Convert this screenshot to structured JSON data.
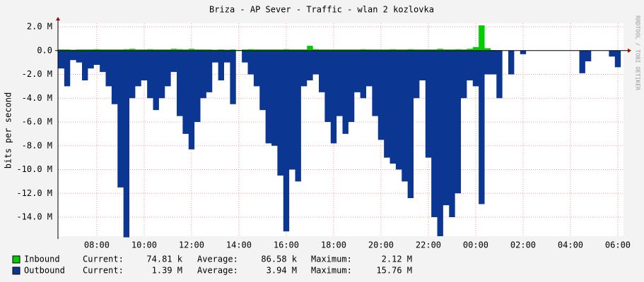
{
  "chart_data": {
    "type": "area",
    "title": "Briza - AP Sever - Traffic - wlan 2 kozlovka",
    "ylabel": "bits per second",
    "side_note": "RRDTOOL / TOBI OETIKER",
    "xlim": [
      6.36,
      30.24
    ],
    "xticks": [
      {
        "value": 8,
        "label": "08:00"
      },
      {
        "value": 10,
        "label": "10:00"
      },
      {
        "value": 12,
        "label": "12:00"
      },
      {
        "value": 14,
        "label": "14:00"
      },
      {
        "value": 16,
        "label": "16:00"
      },
      {
        "value": 18,
        "label": "18:00"
      },
      {
        "value": 20,
        "label": "20:00"
      },
      {
        "value": 22,
        "label": "22:00"
      },
      {
        "value": 24,
        "label": "00:00"
      },
      {
        "value": 26,
        "label": "02:00"
      },
      {
        "value": 28,
        "label": "04:00"
      },
      {
        "value": 30,
        "label": "06:00"
      }
    ],
    "ylim": [
      -15.6,
      2.3
    ],
    "yticks": [
      {
        "value": 2,
        "label": "2.0 M"
      },
      {
        "value": 0,
        "label": "0.0"
      },
      {
        "value": -2,
        "label": "-2.0 M"
      },
      {
        "value": -4,
        "label": "-4.0 M"
      },
      {
        "value": -6,
        "label": "-6.0 M"
      },
      {
        "value": -8,
        "label": "-8.0 M"
      },
      {
        "value": -10,
        "label": "-10.0 M"
      },
      {
        "value": -12,
        "label": "-12.0 M"
      },
      {
        "value": -14,
        "label": "-14.0 M"
      }
    ],
    "grid": true,
    "x": [
      6.5,
      6.75,
      7,
      7.25,
      7.5,
      7.75,
      8,
      8.25,
      8.5,
      8.75,
      9,
      9.25,
      9.5,
      9.75,
      10,
      10.25,
      10.5,
      10.75,
      11,
      11.25,
      11.5,
      11.75,
      12,
      12.25,
      12.5,
      12.75,
      13,
      13.25,
      13.5,
      13.75,
      14,
      14.25,
      14.5,
      14.75,
      15,
      15.25,
      15.5,
      15.75,
      16,
      16.25,
      16.5,
      16.75,
      17,
      17.25,
      17.5,
      17.75,
      18,
      18.25,
      18.5,
      18.75,
      19,
      19.25,
      19.5,
      19.75,
      20,
      20.25,
      20.5,
      20.75,
      21,
      21.25,
      21.5,
      21.75,
      22,
      22.25,
      22.5,
      22.75,
      23,
      23.25,
      23.5,
      23.75,
      24,
      24.25,
      24.5,
      24.75,
      25,
      25.25,
      25.5,
      25.75,
      26,
      26.25,
      26.5,
      26.75,
      27,
      27.25,
      27.5,
      27.75,
      28,
      28.25,
      28.5,
      28.75,
      29,
      29.25,
      29.5,
      29.75,
      30
    ],
    "series": [
      {
        "name": "Outbound",
        "color": "#0b3692",
        "legend_stats": [
          "Current:",
          "1.39 M",
          "Average:",
          "3.94 M",
          "Maximum:",
          "15.76 M"
        ],
        "values": [
          -1.5,
          -3,
          -0.8,
          -1,
          -2.5,
          -1.5,
          -1.2,
          -1.8,
          -3,
          -4.5,
          -11.5,
          -15.7,
          -4,
          -3,
          -2.5,
          -4,
          -5,
          -4,
          -3,
          -1.8,
          -5.5,
          -7,
          -8.3,
          -6,
          -4,
          -3.5,
          -1,
          -2.5,
          -1,
          -4.5,
          0,
          -1,
          -2,
          -3,
          -5,
          -7.8,
          -8,
          -10.5,
          -15.2,
          -10,
          -11,
          -3,
          -2.5,
          -2,
          -3.5,
          -6,
          -7.8,
          -5.5,
          -7,
          -6,
          -3.5,
          -4,
          -3,
          -5.5,
          -7.5,
          -9,
          -9.5,
          -10,
          -11,
          -12.4,
          -4,
          -2.5,
          -9,
          -14,
          -15.6,
          -13,
          -14,
          -12,
          -4,
          -2.5,
          -3,
          -12.9,
          -2,
          -2,
          -4,
          0,
          -2,
          0,
          -0.3,
          0,
          0,
          0,
          0,
          0,
          0,
          0,
          0,
          0,
          -1.9,
          -0.9,
          0,
          0,
          0,
          -0.5,
          -1.4
        ]
      },
      {
        "name": "Inbound",
        "color": "#00cc00",
        "legend_stats": [
          "Current:",
          "74.81 k",
          "Average:",
          "86.58 k",
          "Maximum:",
          "2.12 M"
        ],
        "values": [
          0.1,
          0.1,
          0.08,
          0.1,
          0.1,
          0.1,
          0.12,
          0.1,
          0.1,
          0.1,
          0.1,
          0.12,
          0.15,
          0.1,
          0.1,
          0.12,
          0.1,
          0.1,
          0.1,
          0.15,
          0.12,
          0.1,
          0.15,
          0.1,
          0.1,
          0.1,
          0.08,
          0.1,
          0.08,
          0.1,
          0.05,
          0.1,
          0.12,
          0.1,
          0.1,
          0.1,
          0.1,
          0.1,
          0.12,
          0.1,
          0.1,
          0.1,
          0.4,
          0.12,
          0.1,
          0.1,
          0.1,
          0.1,
          0.1,
          0.1,
          0.1,
          0.12,
          0.1,
          0.1,
          0.1,
          0.1,
          0.12,
          0.1,
          0.1,
          0.12,
          0.1,
          0.1,
          0.1,
          0.1,
          0.15,
          0.1,
          0.1,
          0.12,
          0.1,
          0.15,
          0.3,
          2.12,
          0.2,
          0.05,
          0.03,
          0,
          0,
          0,
          0,
          0,
          0,
          0,
          0,
          0,
          0,
          0,
          0,
          0,
          0,
          0,
          0,
          0,
          0,
          0,
          0
        ]
      }
    ],
    "legend_order": [
      1,
      0
    ]
  }
}
